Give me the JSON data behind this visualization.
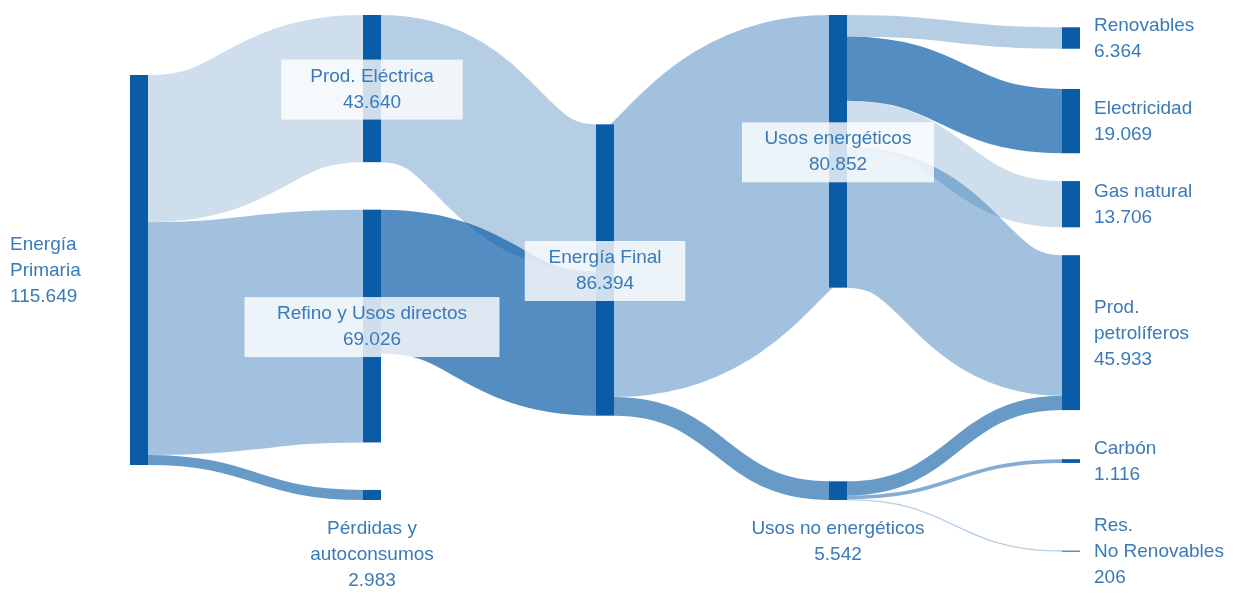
{
  "chart_data": {
    "type": "other",
    "categories": [
      "Energía\nPrimaria",
      "Prod. Eléctrica",
      "Refino y Usos directos",
      "Pérdidas y\nautoconsumos",
      "Energía Final",
      "Usos energéticos",
      "Usos no energéticos",
      "Renovables",
      "Electricidad",
      "Gas natural",
      "Prod.\npetrolíferos",
      "Carbón",
      "Res.\nNo Renovables"
    ],
    "values": [
      115649,
      43640,
      69026,
      2983,
      86394,
      80852,
      5542,
      6364,
      19069,
      13706,
      45933,
      1116,
      206
    ],
    "value_labels": [
      "115.649",
      "43.640",
      "69.026",
      "2.983",
      "86.394",
      "80.852",
      "5.542",
      "6.364",
      "19.069",
      "13.706",
      "45.933",
      "1.116",
      "206"
    ],
    "color": "#0b5ca7"
  }
}
